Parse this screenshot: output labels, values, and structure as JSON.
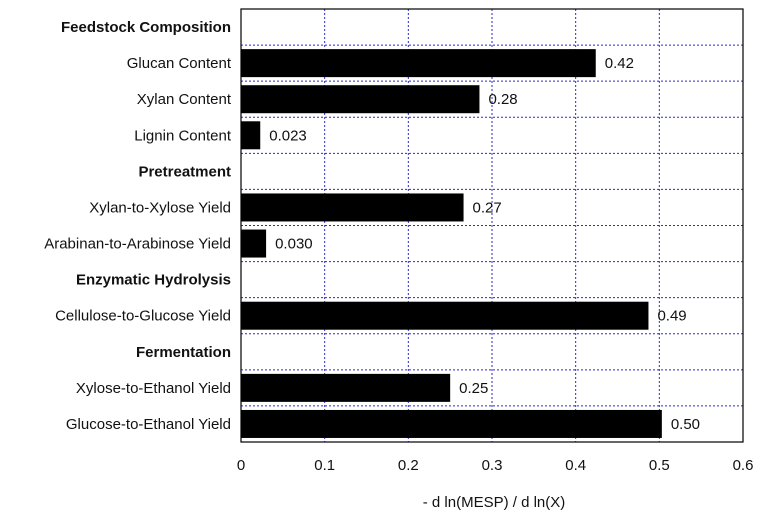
{
  "chart_data": {
    "type": "bar",
    "orientation": "horizontal",
    "xlabel": "- d ln(MESP) / d ln(X)",
    "ylabel": "",
    "xlim": [
      0,
      0.6
    ],
    "xticks": [
      0,
      0.1,
      0.2,
      0.3,
      0.4,
      0.5,
      0.6
    ],
    "xtick_labels": [
      "0",
      "0.1",
      "0.2",
      "0.3",
      "0.4",
      "0.5",
      "0.6"
    ],
    "grid": true,
    "bar_color": "#000000",
    "grid_color": "#2a2ad0",
    "rows": [
      {
        "kind": "group",
        "label": "Feedstock Composition"
      },
      {
        "kind": "bar",
        "label": "Glucan Content",
        "value": 0.424,
        "value_label": "0.42"
      },
      {
        "kind": "bar",
        "label": "Xylan Content",
        "value": 0.285,
        "value_label": "0.28"
      },
      {
        "kind": "bar",
        "label": "Lignin Content",
        "value": 0.023,
        "value_label": "0.023"
      },
      {
        "kind": "group",
        "label": "Pretreatment"
      },
      {
        "kind": "bar",
        "label": "Xylan-to-Xylose Yield",
        "value": 0.266,
        "value_label": "0.27"
      },
      {
        "kind": "bar",
        "label": "Arabinan-to-Arabinose Yield",
        "value": 0.03,
        "value_label": "0.030"
      },
      {
        "kind": "group",
        "label": "Enzymatic Hydrolysis"
      },
      {
        "kind": "bar",
        "label": "Cellulose-to-Glucose Yield",
        "value": 0.487,
        "value_label": "0.49"
      },
      {
        "kind": "group",
        "label": "Fermentation"
      },
      {
        "kind": "bar",
        "label": "Xylose-to-Ethanol Yield",
        "value": 0.25,
        "value_label": "0.25"
      },
      {
        "kind": "bar",
        "label": "Glucose-to-Ethanol Yield",
        "value": 0.503,
        "value_label": "0.50"
      }
    ]
  }
}
